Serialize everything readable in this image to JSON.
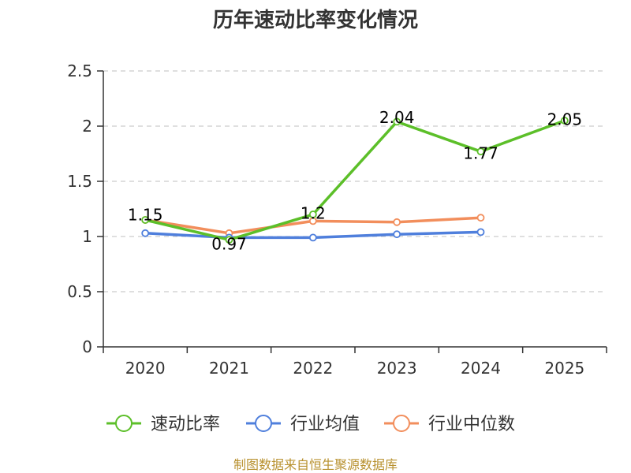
{
  "chart_data": {
    "type": "line",
    "title": "历年速动比率变化情况",
    "categories": [
      "2020",
      "2021",
      "2022",
      "2023",
      "2024",
      "2025"
    ],
    "ylim": [
      0,
      2.5
    ],
    "yticks": [
      "0",
      "0.5",
      "1",
      "1.5",
      "2",
      "2.5"
    ],
    "grid": true,
    "legend_position": "bottom",
    "series": [
      {
        "name": "速动比率",
        "color": "#5cbf29",
        "values": [
          1.15,
          0.97,
          1.2,
          2.04,
          1.77,
          2.05
        ],
        "labels": [
          "1.15",
          "0.97",
          "1.2",
          "2.04",
          "1.77",
          "2.05"
        ]
      },
      {
        "name": "行业均值",
        "color": "#4f7fdc",
        "values": [
          1.03,
          0.99,
          0.99,
          1.02,
          1.04,
          null
        ]
      },
      {
        "name": "行业中位数",
        "color": "#f28e5c",
        "values": [
          1.15,
          1.03,
          1.14,
          1.13,
          1.17,
          null
        ]
      }
    ],
    "source": "制图数据来自恒生聚源数据库"
  }
}
